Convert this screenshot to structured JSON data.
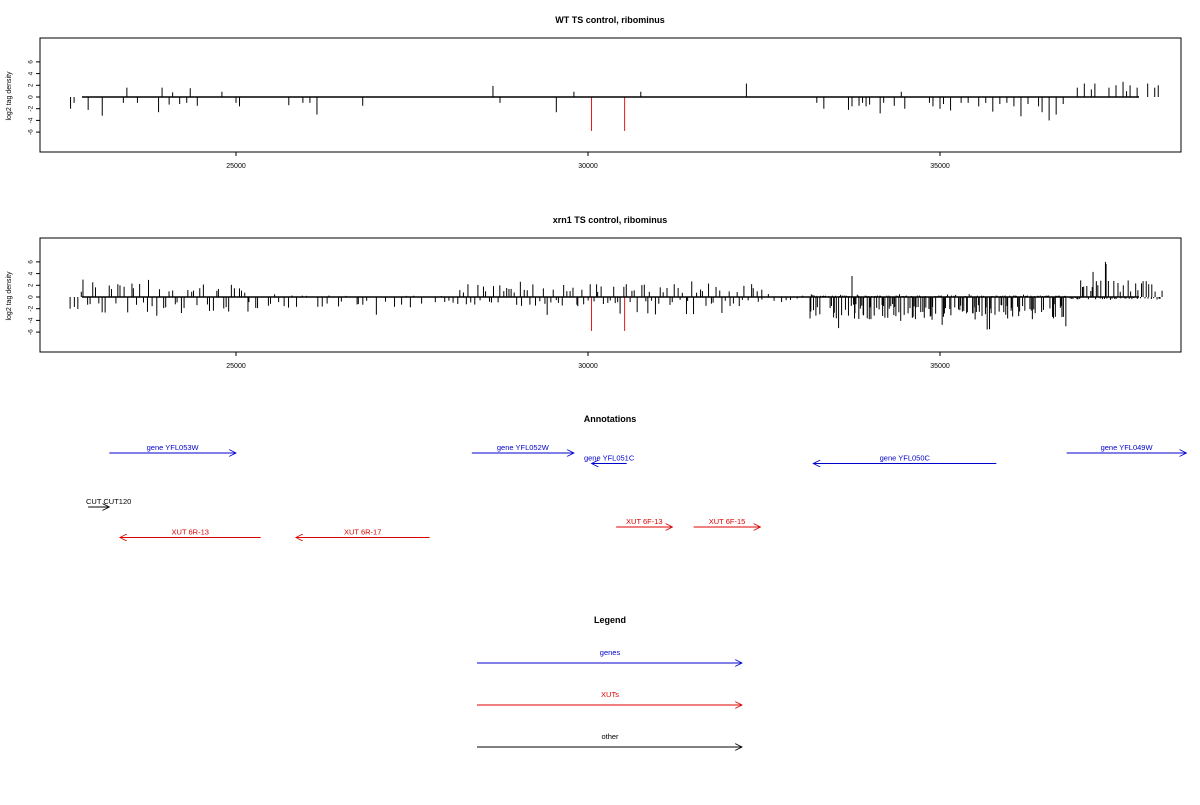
{
  "chart_data": [
    {
      "type": "bar",
      "title": "WT TS control, ribominus",
      "ylabel": "log2 tag density",
      "xlabel": "",
      "xlim": [
        22600,
        38200
      ],
      "ylim": [
        -6,
        6.5
      ],
      "xticks": [
        25000,
        30000,
        35000
      ],
      "yticks": [
        -6,
        -4,
        -2,
        0,
        2,
        4,
        6
      ],
      "grid": false,
      "bars": [
        {
          "x": 22650,
          "y": -2.0
        },
        {
          "x": 22700,
          "y": -1.0
        },
        {
          "x": 22900,
          "y": -2.2
        },
        {
          "x": 23100,
          "y": -3.2
        },
        {
          "x": 23400,
          "y": -1.0
        },
        {
          "x": 23450,
          "y": 1.6
        },
        {
          "x": 23600,
          "y": -1.0
        },
        {
          "x": 23900,
          "y": -2.6
        },
        {
          "x": 23950,
          "y": 1.6
        },
        {
          "x": 24050,
          "y": -1.3
        },
        {
          "x": 24100,
          "y": 0.8
        },
        {
          "x": 24200,
          "y": -1.2
        },
        {
          "x": 24300,
          "y": -1.0
        },
        {
          "x": 24350,
          "y": 1.5
        },
        {
          "x": 24450,
          "y": -1.5
        },
        {
          "x": 24800,
          "y": 0.9
        },
        {
          "x": 25000,
          "y": -1.0
        },
        {
          "x": 25050,
          "y": -1.6
        },
        {
          "x": 25750,
          "y": -1.4
        },
        {
          "x": 25950,
          "y": -1.0
        },
        {
          "x": 26050,
          "y": -1.0
        },
        {
          "x": 26150,
          "y": -3.0
        },
        {
          "x": 26800,
          "y": -1.5
        },
        {
          "x": 28650,
          "y": 1.9
        },
        {
          "x": 28750,
          "y": -1.0
        },
        {
          "x": 29550,
          "y": -2.6
        },
        {
          "x": 29800,
          "y": 0.9
        },
        {
          "x": 30050,
          "y": -5.8,
          "color": "#e41a1c"
        },
        {
          "x": 30520,
          "y": -5.8,
          "color": "#e41a1c"
        },
        {
          "x": 30750,
          "y": 0.9
        },
        {
          "x": 32250,
          "y": 2.3
        },
        {
          "x": 33250,
          "y": -1.0
        },
        {
          "x": 33350,
          "y": -2.0
        },
        {
          "x": 33700,
          "y": -2.2
        },
        {
          "x": 33750,
          "y": -1.6
        },
        {
          "x": 33850,
          "y": -1.5
        },
        {
          "x": 33900,
          "y": -1.0
        },
        {
          "x": 33950,
          "y": -1.6
        },
        {
          "x": 34000,
          "y": -1.3
        },
        {
          "x": 34150,
          "y": -2.8
        },
        {
          "x": 34200,
          "y": -1.0
        },
        {
          "x": 34350,
          "y": -1.5
        },
        {
          "x": 34450,
          "y": 0.9
        },
        {
          "x": 34500,
          "y": -2.0
        },
        {
          "x": 34850,
          "y": -1.0
        },
        {
          "x": 34900,
          "y": -1.6
        },
        {
          "x": 35000,
          "y": -2.0
        },
        {
          "x": 35050,
          "y": -1.2
        },
        {
          "x": 35150,
          "y": -2.3
        },
        {
          "x": 35300,
          "y": -1.0
        },
        {
          "x": 35400,
          "y": -1.0
        },
        {
          "x": 35550,
          "y": -1.6
        },
        {
          "x": 35650,
          "y": -1.0
        },
        {
          "x": 35750,
          "y": -2.5
        },
        {
          "x": 35850,
          "y": -1.2
        },
        {
          "x": 35950,
          "y": -1.0
        },
        {
          "x": 36050,
          "y": -1.6
        },
        {
          "x": 36150,
          "y": -3.3
        },
        {
          "x": 36250,
          "y": -1.2
        },
        {
          "x": 36400,
          "y": -1.6
        },
        {
          "x": 36450,
          "y": -2.6
        },
        {
          "x": 36550,
          "y": -4.0
        },
        {
          "x": 36650,
          "y": -3.0
        },
        {
          "x": 36750,
          "y": -1.2
        },
        {
          "x": 36950,
          "y": 1.6
        },
        {
          "x": 37050,
          "y": 2.3
        },
        {
          "x": 37150,
          "y": 1.3
        },
        {
          "x": 37200,
          "y": 2.3
        },
        {
          "x": 37400,
          "y": 1.6
        },
        {
          "x": 37500,
          "y": 2.0
        },
        {
          "x": 37600,
          "y": 2.6
        },
        {
          "x": 37650,
          "y": 1.0
        },
        {
          "x": 37700,
          "y": 2.0
        },
        {
          "x": 37800,
          "y": 1.6
        },
        {
          "x": 37950,
          "y": 2.3
        },
        {
          "x": 38050,
          "y": 1.6
        },
        {
          "x": 38100,
          "y": 2.0
        }
      ]
    },
    {
      "type": "bar",
      "title": "xrn1 TS control, ribominus",
      "ylabel": "log2 tag density",
      "xlabel": "",
      "xlim": [
        22600,
        38200
      ],
      "ylim": [
        -6,
        6.5
      ],
      "xticks": [
        25000,
        30000,
        35000
      ],
      "yticks": [
        -6,
        -4,
        -2,
        0,
        2,
        4,
        6
      ],
      "grid": false,
      "density": [
        {
          "from": 22650,
          "to": 25200,
          "step": 45,
          "pos": 1.8,
          "neg": -2.2,
          "posMax": 3.0,
          "negMax": -3.2
        },
        {
          "from": 25200,
          "to": 28100,
          "step": 60,
          "pos": 0.2,
          "neg": -1.5,
          "posMax": 0.5,
          "negMax": -3.6
        },
        {
          "from": 28150,
          "to": 32500,
          "step": 40,
          "pos": 1.8,
          "neg": -1.2,
          "posMax": 3.0,
          "negMax": -3.2
        },
        {
          "from": 32500,
          "to": 33100,
          "step": 80,
          "pos": 0.4,
          "neg": -0.6,
          "posMax": 1.0,
          "negMax": -1.0
        },
        {
          "from": 33150,
          "to": 36800,
          "step": 14,
          "pos": 0.2,
          "neg": -3.0,
          "posMax": 0.5,
          "negMax": -5.6
        },
        {
          "from": 36850,
          "to": 38150,
          "step": 22,
          "pos": 2.2,
          "neg": -0.3,
          "posMax": 6.0,
          "negMax": -0.5
        }
      ],
      "bars": [
        {
          "x": 30050,
          "y": -5.8,
          "color": "#e41a1c"
        },
        {
          "x": 30520,
          "y": -5.8,
          "color": "#e41a1c"
        },
        {
          "x": 30850,
          "y": -2.8
        },
        {
          "x": 33750,
          "y": 3.6
        },
        {
          "x": 37350,
          "y": 6.0
        }
      ]
    }
  ],
  "annotations": {
    "title": "Annotations",
    "features": [
      {
        "label": "gene YFL053W",
        "x1": 23200,
        "x2": 25000,
        "dir": "right",
        "color": "#0000cc",
        "row": 0.9
      },
      {
        "label": "gene YFL052W",
        "x1": 28350,
        "x2": 29800,
        "dir": "right",
        "color": "#0000cc",
        "row": 0.9
      },
      {
        "label": "gene YFL051C",
        "x1": 30050,
        "x2": 30550,
        "dir": "left",
        "color": "#0000cc",
        "row": 1.95
      },
      {
        "label": "gene YFL050C",
        "x1": 33200,
        "x2": 35800,
        "dir": "left",
        "color": "#0000cc",
        "row": 1.95
      },
      {
        "label": "gene YFL049W",
        "x1": 36800,
        "x2": 38500,
        "dir": "right",
        "color": "#0000cc",
        "row": 0.9
      },
      {
        "label": "CUT CUT120",
        "x1": 22900,
        "x2": 23200,
        "dir": "right",
        "color": "#000000",
        "row": 6.3
      },
      {
        "label": "XUT 6R-13",
        "x1": 23350,
        "x2": 25350,
        "dir": "left",
        "color": "#dd0000",
        "row": 9.35
      },
      {
        "label": "XUT 6R-17",
        "x1": 25850,
        "x2": 27750,
        "dir": "left",
        "color": "#dd0000",
        "row": 9.35
      },
      {
        "label": "XUT 6F-13",
        "x1": 30400,
        "x2": 31200,
        "dir": "right",
        "color": "#dd0000",
        "row": 8.3
      },
      {
        "label": "XUT 6F-15",
        "x1": 31500,
        "x2": 32450,
        "dir": "right",
        "color": "#dd0000",
        "row": 8.3
      }
    ]
  },
  "legend": {
    "title": "Legend",
    "items": [
      {
        "label": "genes",
        "color": "#0000cc"
      },
      {
        "label": "XUTs",
        "color": "#dd0000"
      },
      {
        "label": "other",
        "color": "#000000"
      }
    ]
  }
}
